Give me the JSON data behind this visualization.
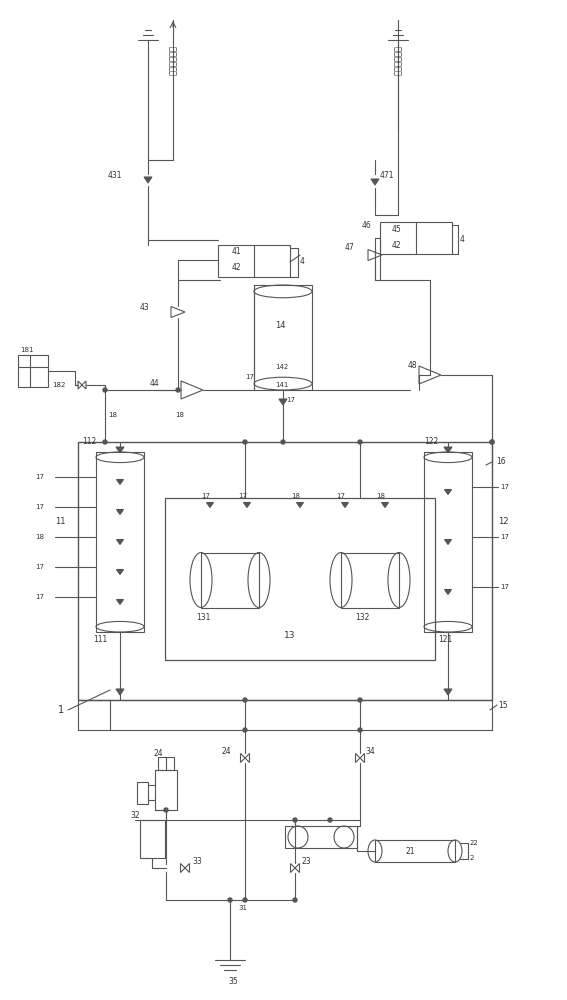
{
  "bg_color": "#ffffff",
  "line_color": "#666666",
  "fig_width": 5.67,
  "fig_height": 10.0,
  "dpi": 100
}
